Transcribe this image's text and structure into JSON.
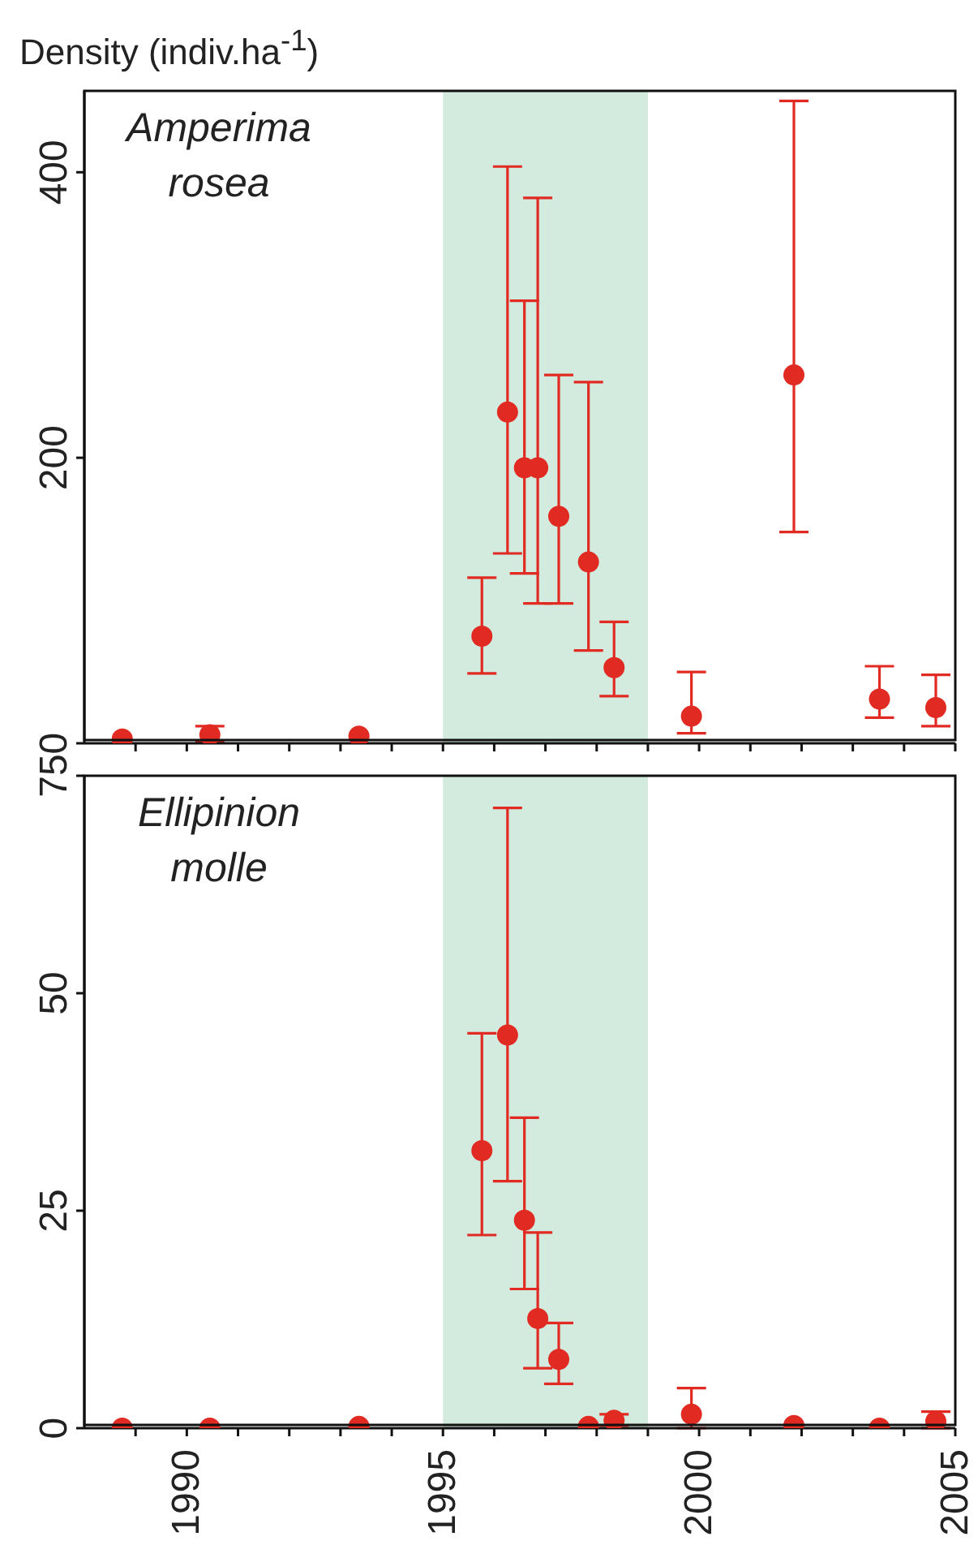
{
  "chart_data": [
    {
      "type": "scatter",
      "title": "Amperima rosea",
      "ylabel": "Density (indiv.ha$^{-1}$)",
      "x": [
        1988.74,
        1990.45,
        1993.36,
        1995.76,
        1996.26,
        1996.59,
        1996.85,
        1997.26,
        1997.84,
        1998.34,
        1999.85,
        2001.85,
        2003.52,
        2004.62
      ],
      "series": [
        {
          "color": "#e02a22",
          "values": [
            3,
            6,
            5,
            75,
            232,
            193,
            193,
            159,
            127,
            53,
            19,
            258,
            31,
            25
          ],
          "errors": [
            null,
            [
              1,
              12
            ],
            null,
            [
              49,
              116
            ],
            [
              133,
              404
            ],
            [
              119,
              310
            ],
            [
              98,
              382
            ],
            [
              98,
              258
            ],
            [
              65,
              253
            ],
            [
              33,
              85
            ],
            [
              7,
              50
            ],
            [
              148,
              450
            ],
            [
              18,
              54
            ],
            [
              12,
              48
            ]
          ]
        }
      ],
      "xlim": [
        1988,
        2005
      ],
      "ylim": [
        0,
        457
      ],
      "yticks": [
        0,
        200,
        400
      ],
      "xticks": [
        {
          "value": 1989,
          "label": null
        },
        1990,
        {
          "value": 1991,
          "label": null
        },
        {
          "value": 1992,
          "label": null
        },
        {
          "value": 1993,
          "label": null
        },
        {
          "value": 1994,
          "label": null
        },
        1995,
        {
          "value": 1996,
          "label": null
        },
        {
          "value": 1997,
          "label": null
        },
        {
          "value": 1998,
          "label": null
        },
        {
          "value": 1999,
          "label": null
        },
        2000,
        {
          "value": 2001,
          "label": null
        },
        {
          "value": 2002,
          "label": null
        },
        {
          "value": 2003,
          "label": null
        },
        {
          "value": 2004,
          "label": null
        },
        2005
      ],
      "tick_labels": "y",
      "bands": [
        {
          "axis": "x",
          "from": 1995,
          "to": 1999,
          "color": "#d3ebdf"
        }
      ],
      "marker": "circle",
      "grid": false,
      "legend": false
    },
    {
      "type": "scatter",
      "title": "Ellipinion molle",
      "x": [
        1988.74,
        1990.45,
        1993.36,
        1995.76,
        1996.26,
        1996.59,
        1996.85,
        1997.26,
        1997.84,
        1998.34,
        1999.85,
        2001.85,
        2003.52,
        2004.62
      ],
      "series": [
        {
          "color": "#e02a22",
          "values": [
            0,
            0,
            0.2,
            31.9,
            45.2,
            23.9,
            12.6,
            7.9,
            0.2,
            0.9,
            1.6,
            0.3,
            0,
            0.8
          ],
          "errors": [
            null,
            null,
            null,
            [
              22.2,
              45.4
            ],
            [
              28.4,
              71.3
            ],
            [
              16,
              35.7
            ],
            [
              6.9,
              22.5
            ],
            [
              5.1,
              12.1
            ],
            null,
            [
              0.3,
              1.6
            ],
            [
              0,
              4.6
            ],
            null,
            null,
            [
              0,
              1.9
            ]
          ]
        }
      ],
      "xlim": [
        1988,
        2005
      ],
      "ylim": [
        0,
        75
      ],
      "yticks": [
        0,
        25,
        50,
        75
      ],
      "xticks": [
        {
          "value": 1989,
          "label": null
        },
        1990,
        {
          "value": 1991,
          "label": null
        },
        {
          "value": 1992,
          "label": null
        },
        {
          "value": 1993,
          "label": null
        },
        {
          "value": 1994,
          "label": null
        },
        1995,
        {
          "value": 1996,
          "label": null
        },
        {
          "value": 1997,
          "label": null
        },
        {
          "value": 1998,
          "label": null
        },
        {
          "value": 1999,
          "label": null
        },
        2000,
        {
          "value": 2001,
          "label": null
        },
        {
          "value": 2002,
          "label": null
        },
        {
          "value": 2003,
          "label": null
        },
        {
          "value": 2004,
          "label": null
        },
        2005
      ],
      "bands": [
        {
          "axis": "x",
          "from": 1995,
          "to": 1999,
          "color": "#d3ebdf"
        }
      ],
      "marker": "circle",
      "grid": false,
      "legend": false
    }
  ]
}
